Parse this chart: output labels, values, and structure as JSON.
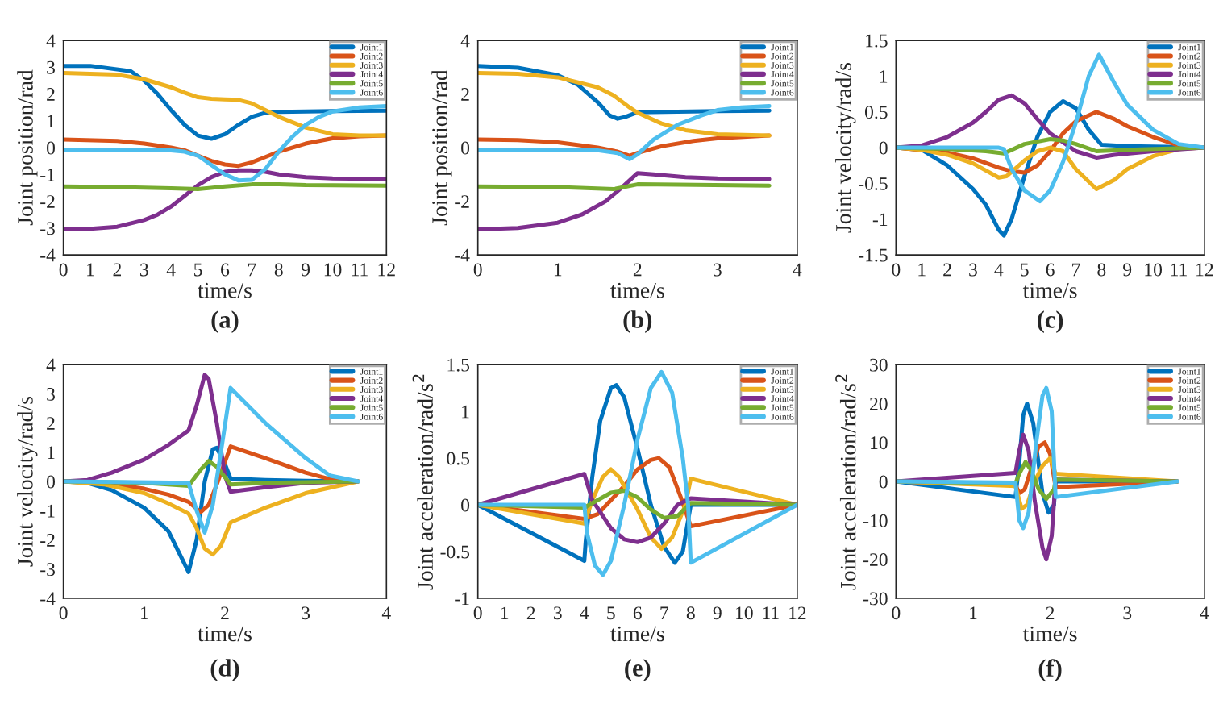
{
  "chart_data": [
    {
      "type": "line",
      "xlabel": "time/s",
      "ylabel": "Joint position/rad",
      "annotations": [
        "(a)"
      ],
      "legend": "top right",
      "xlim": [
        0,
        12
      ],
      "xticks": [
        0,
        1,
        2,
        3,
        4,
        5,
        6,
        7,
        8,
        9,
        10,
        11,
        12
      ],
      "ylim": [
        -4,
        4
      ],
      "yticks": [
        -4,
        -3,
        -2,
        -1,
        0,
        1,
        2,
        3,
        4
      ],
      "series": [
        {
          "name": "Joint1",
          "color": "#0072bd",
          "x": [
            0,
            1,
            2.5,
            3,
            3.5,
            4,
            4.5,
            5,
            5.5,
            6,
            6.5,
            7,
            7.5,
            8,
            10,
            12
          ],
          "values": [
            3.05,
            3.05,
            2.85,
            2.5,
            2.0,
            1.4,
            0.85,
            0.45,
            0.33,
            0.5,
            0.85,
            1.15,
            1.3,
            1.33,
            1.36,
            1.38
          ]
        },
        {
          "name": "Joint2",
          "color": "#d95319",
          "x": [
            0,
            2,
            3,
            4,
            4.5,
            5,
            5.5,
            6,
            6.5,
            7,
            7.5,
            8,
            9,
            10,
            11,
            12
          ],
          "values": [
            0.3,
            0.25,
            0.15,
            0.0,
            -0.1,
            -0.3,
            -0.5,
            -0.63,
            -0.68,
            -0.55,
            -0.35,
            -0.15,
            0.15,
            0.35,
            0.42,
            0.45
          ]
        },
        {
          "name": "Joint3",
          "color": "#edb120",
          "x": [
            0,
            2,
            3,
            4,
            4.5,
            5,
            5.5,
            6,
            6.5,
            7,
            7.5,
            8,
            9,
            10,
            11,
            12
          ],
          "values": [
            2.78,
            2.72,
            2.55,
            2.25,
            2.05,
            1.88,
            1.82,
            1.8,
            1.78,
            1.65,
            1.4,
            1.15,
            0.75,
            0.5,
            0.45,
            0.45
          ]
        },
        {
          "name": "Joint4",
          "color": "#7e2f8e",
          "x": [
            0,
            1,
            2,
            3,
            3.5,
            4,
            4.5,
            5,
            5.5,
            6,
            6.5,
            7,
            7.5,
            8,
            9,
            10,
            12
          ],
          "values": [
            -3.05,
            -3.03,
            -2.95,
            -2.7,
            -2.5,
            -2.2,
            -1.8,
            -1.4,
            -1.1,
            -0.9,
            -0.85,
            -0.85,
            -0.9,
            -1.0,
            -1.1,
            -1.15,
            -1.17
          ]
        },
        {
          "name": "Joint5",
          "color": "#77ac30",
          "x": [
            0,
            2,
            4,
            5,
            6,
            7,
            8,
            9,
            12
          ],
          "values": [
            -1.45,
            -1.47,
            -1.52,
            -1.55,
            -1.45,
            -1.37,
            -1.37,
            -1.4,
            -1.42
          ]
        },
        {
          "name": "Joint6",
          "color": "#4dbeee",
          "x": [
            0,
            4,
            4.5,
            5,
            5.5,
            6,
            6.5,
            7,
            7.5,
            8,
            8.5,
            9,
            9.5,
            10,
            11,
            12
          ],
          "values": [
            -0.1,
            -0.1,
            -0.15,
            -0.3,
            -0.65,
            -1.0,
            -1.22,
            -1.2,
            -0.8,
            -0.15,
            0.4,
            0.85,
            1.15,
            1.35,
            1.5,
            1.55
          ]
        }
      ]
    },
    {
      "type": "line",
      "xlabel": "time/s",
      "ylabel": "Joint position/rad",
      "annotations": [
        "(b)"
      ],
      "legend": "top right",
      "xlim": [
        0,
        4
      ],
      "xticks": [
        0,
        1,
        2,
        3,
        4
      ],
      "ylim": [
        -4,
        4
      ],
      "yticks": [
        -4,
        -2,
        0,
        2,
        4
      ],
      "series": [
        {
          "name": "Joint1",
          "color": "#0072bd",
          "x": [
            0,
            0.5,
            1,
            1.25,
            1.5,
            1.65,
            1.75,
            1.85,
            2.0,
            2.5,
            3,
            3.65
          ],
          "values": [
            3.05,
            2.98,
            2.7,
            2.35,
            1.7,
            1.2,
            1.08,
            1.15,
            1.32,
            1.34,
            1.36,
            1.38
          ]
        },
        {
          "name": "Joint2",
          "color": "#d95319",
          "x": [
            0,
            0.5,
            1,
            1.5,
            1.75,
            1.9,
            2.0,
            2.3,
            2.7,
            3.0,
            3.65
          ],
          "values": [
            0.3,
            0.28,
            0.2,
            0.0,
            -0.15,
            -0.3,
            -0.2,
            0.05,
            0.25,
            0.35,
            0.45
          ]
        },
        {
          "name": "Joint3",
          "color": "#edb120",
          "x": [
            0,
            0.5,
            1,
            1.5,
            1.7,
            1.9,
            2.0,
            2.3,
            2.6,
            3.0,
            3.65
          ],
          "values": [
            2.78,
            2.75,
            2.62,
            2.25,
            1.95,
            1.5,
            1.3,
            0.9,
            0.65,
            0.5,
            0.45
          ]
        },
        {
          "name": "Joint4",
          "color": "#7e2f8e",
          "x": [
            0,
            0.5,
            1,
            1.3,
            1.6,
            1.8,
            2.0,
            2.2,
            2.6,
            3.0,
            3.65
          ],
          "values": [
            -3.05,
            -3.0,
            -2.8,
            -2.5,
            -2.0,
            -1.5,
            -0.95,
            -1.0,
            -1.1,
            -1.15,
            -1.17
          ]
        },
        {
          "name": "Joint5",
          "color": "#77ac30",
          "x": [
            0,
            1,
            1.7,
            2.0,
            2.5,
            3.65
          ],
          "values": [
            -1.45,
            -1.47,
            -1.55,
            -1.37,
            -1.38,
            -1.42
          ]
        },
        {
          "name": "Joint6",
          "color": "#4dbeee",
          "x": [
            0,
            1.5,
            1.75,
            1.9,
            2.0,
            2.2,
            2.5,
            2.8,
            3.0,
            3.3,
            3.65
          ],
          "values": [
            -0.1,
            -0.1,
            -0.2,
            -0.43,
            -0.25,
            0.3,
            0.85,
            1.2,
            1.4,
            1.5,
            1.55
          ]
        }
      ]
    },
    {
      "type": "line",
      "xlabel": "time/s",
      "ylabel": "Joint velocity/rad/s",
      "annotations": [
        "(c)"
      ],
      "legend": "top right",
      "xlim": [
        0,
        12
      ],
      "xticks": [
        0,
        1,
        2,
        3,
        4,
        5,
        6,
        7,
        8,
        9,
        10,
        11,
        12
      ],
      "ylim": [
        -1.5,
        1.5
      ],
      "yticks": [
        -1.5,
        -1,
        -0.5,
        0,
        0.5,
        1,
        1.5
      ],
      "series": [
        {
          "name": "Joint1",
          "color": "#0072bd",
          "x": [
            0,
            1,
            2,
            3,
            3.5,
            4,
            4.2,
            4.5,
            5,
            5.5,
            6,
            6.5,
            7,
            7.5,
            8,
            9,
            11,
            12
          ],
          "values": [
            0,
            -0.03,
            -0.25,
            -0.58,
            -0.8,
            -1.15,
            -1.23,
            -1.0,
            -0.4,
            0.15,
            0.5,
            0.65,
            0.55,
            0.25,
            0.04,
            0.02,
            0.01,
            0
          ]
        },
        {
          "name": "Joint2",
          "color": "#d95319",
          "x": [
            0,
            2,
            3,
            4,
            4.5,
            5,
            5.5,
            6,
            6.5,
            7,
            7.8,
            8.5,
            9,
            10,
            11,
            12
          ],
          "values": [
            0,
            -0.07,
            -0.15,
            -0.28,
            -0.33,
            -0.35,
            -0.25,
            -0.05,
            0.2,
            0.37,
            0.5,
            0.4,
            0.3,
            0.15,
            0.03,
            0
          ]
        },
        {
          "name": "Joint3",
          "color": "#edb120",
          "x": [
            0,
            1,
            2,
            3,
            4,
            4.3,
            5,
            5.5,
            6,
            6.5,
            7,
            7.8,
            8.5,
            9,
            10,
            11,
            12
          ],
          "values": [
            0,
            -0.03,
            -0.1,
            -0.22,
            -0.42,
            -0.4,
            -0.18,
            -0.05,
            0,
            -0.05,
            -0.3,
            -0.58,
            -0.45,
            -0.3,
            -0.12,
            -0.02,
            0
          ]
        },
        {
          "name": "Joint4",
          "color": "#7e2f8e",
          "x": [
            0,
            1,
            2,
            3,
            3.5,
            4,
            4.5,
            5,
            5.5,
            6,
            7,
            7.8,
            8.5,
            10,
            12
          ],
          "values": [
            0,
            0.03,
            0.15,
            0.35,
            0.5,
            0.67,
            0.73,
            0.62,
            0.4,
            0.2,
            -0.05,
            -0.14,
            -0.1,
            -0.05,
            0
          ]
        },
        {
          "name": "Joint5",
          "color": "#77ac30",
          "x": [
            0,
            2,
            3.5,
            4.2,
            5,
            6,
            6.5,
            7,
            7.8,
            9,
            12
          ],
          "values": [
            0,
            -0.02,
            -0.05,
            -0.08,
            0.05,
            0.12,
            0.1,
            0.05,
            -0.05,
            -0.03,
            0
          ]
        },
        {
          "name": "Joint6",
          "color": "#4dbeee",
          "x": [
            0,
            4,
            4.2,
            4.5,
            5,
            5.6,
            6,
            6.5,
            7,
            7.5,
            7.9,
            8.5,
            9,
            10,
            11,
            12
          ],
          "values": [
            0,
            0,
            -0.02,
            -0.3,
            -0.6,
            -0.75,
            -0.6,
            -0.2,
            0.35,
            1.0,
            1.3,
            0.9,
            0.6,
            0.25,
            0.05,
            0
          ]
        }
      ]
    },
    {
      "type": "line",
      "xlabel": "time/s",
      "ylabel": "Joint velocity/rad/s",
      "annotations": [
        "(d)"
      ],
      "legend": "top right",
      "xlim": [
        0,
        4
      ],
      "xticks": [
        0,
        1,
        2,
        3,
        4
      ],
      "ylim": [
        -4,
        4
      ],
      "yticks": [
        -4,
        -3,
        -2,
        -1,
        0,
        1,
        2,
        3,
        4
      ],
      "series": [
        {
          "name": "Joint1",
          "color": "#0072bd",
          "x": [
            0,
            0.3,
            0.6,
            1,
            1.3,
            1.55,
            1.65,
            1.75,
            1.85,
            1.9,
            2.0,
            2.07,
            2.5,
            3,
            3.65
          ],
          "values": [
            0,
            -0.05,
            -0.3,
            -0.9,
            -1.7,
            -3.1,
            -2.0,
            0.0,
            1.1,
            1.15,
            0.6,
            0.1,
            0.05,
            0.02,
            0
          ]
        },
        {
          "name": "Joint2",
          "color": "#d95319",
          "x": [
            0,
            0.5,
            1,
            1.3,
            1.55,
            1.7,
            1.8,
            1.9,
            2.07,
            2.5,
            3.0,
            3.3,
            3.65
          ],
          "values": [
            0,
            -0.05,
            -0.25,
            -0.45,
            -0.7,
            -1.05,
            -0.8,
            -0.1,
            1.2,
            0.8,
            0.3,
            0.08,
            0
          ]
        },
        {
          "name": "Joint3",
          "color": "#edb120",
          "x": [
            0,
            0.5,
            1,
            1.3,
            1.55,
            1.65,
            1.75,
            1.85,
            1.95,
            2.07,
            2.5,
            3.0,
            3.65
          ],
          "values": [
            0,
            -0.1,
            -0.4,
            -0.75,
            -1.1,
            -1.6,
            -2.3,
            -2.5,
            -2.2,
            -1.4,
            -0.9,
            -0.4,
            0
          ]
        },
        {
          "name": "Joint4",
          "color": "#7e2f8e",
          "x": [
            0,
            0.3,
            0.6,
            1,
            1.3,
            1.55,
            1.65,
            1.75,
            1.8,
            1.9,
            2.0,
            2.07,
            2.5,
            3.0,
            3.65
          ],
          "values": [
            0,
            0.05,
            0.3,
            0.75,
            1.25,
            1.75,
            2.6,
            3.65,
            3.5,
            2.0,
            0.2,
            -0.35,
            -0.2,
            -0.05,
            0
          ]
        },
        {
          "name": "Joint5",
          "color": "#77ac30",
          "x": [
            0,
            1,
            1.55,
            1.7,
            1.8,
            1.9,
            2.07,
            2.5,
            3.65
          ],
          "values": [
            0,
            -0.05,
            -0.15,
            0.4,
            0.7,
            0.5,
            -0.1,
            -0.05,
            0
          ]
        },
        {
          "name": "Joint6",
          "color": "#4dbeee",
          "x": [
            0,
            1.55,
            1.65,
            1.75,
            1.85,
            1.95,
            2.07,
            2.5,
            3.0,
            3.3,
            3.65
          ],
          "values": [
            0,
            -0.05,
            -1.0,
            -1.75,
            -0.8,
            1.0,
            3.2,
            2.0,
            0.8,
            0.2,
            0
          ]
        }
      ]
    },
    {
      "type": "line",
      "xlabel": "time/s",
      "ylabel": "Joint acceleration/rad/s$^{2}$",
      "annotations": [
        "(e)"
      ],
      "legend": "top right",
      "xlim": [
        0,
        12
      ],
      "xticks": [
        0,
        1,
        2,
        3,
        4,
        5,
        6,
        7,
        8,
        9,
        10,
        11,
        12
      ],
      "ylim": [
        -1,
        1.5
      ],
      "yticks": [
        -1,
        -0.5,
        0,
        0.5,
        1,
        1.5
      ],
      "series": [
        {
          "name": "Joint1",
          "color": "#0072bd",
          "x": [
            0,
            4,
            4.05,
            4.3,
            4.6,
            5,
            5.2,
            5.5,
            6,
            6.5,
            7,
            7.4,
            7.7,
            8,
            12
          ],
          "values": [
            0,
            -0.6,
            -0.4,
            0.3,
            0.9,
            1.25,
            1.28,
            1.15,
            0.6,
            0.0,
            -0.45,
            -0.62,
            -0.5,
            0,
            0
          ]
        },
        {
          "name": "Joint2",
          "color": "#d95319",
          "x": [
            0,
            4,
            4.5,
            5,
            5.5,
            6,
            6.5,
            6.8,
            7.2,
            7.6,
            8,
            12
          ],
          "values": [
            0,
            -0.15,
            -0.1,
            0.05,
            0.2,
            0.38,
            0.48,
            0.5,
            0.4,
            0.1,
            -0.23,
            0
          ]
        },
        {
          "name": "Joint3",
          "color": "#edb120",
          "x": [
            0,
            4,
            4.3,
            4.7,
            5,
            5.3,
            6,
            6.5,
            6.9,
            7.3,
            7.8,
            8,
            12
          ],
          "values": [
            0,
            -0.2,
            0.05,
            0.3,
            0.38,
            0.3,
            -0.05,
            -0.35,
            -0.47,
            -0.35,
            0.0,
            0.28,
            0
          ]
        },
        {
          "name": "Joint4",
          "color": "#7e2f8e",
          "x": [
            0,
            4,
            4.3,
            5,
            5.5,
            6,
            6.5,
            7,
            7.5,
            8,
            12
          ],
          "values": [
            0,
            0.33,
            0.05,
            -0.25,
            -0.37,
            -0.4,
            -0.35,
            -0.2,
            0.0,
            0.07,
            0
          ]
        },
        {
          "name": "Joint5",
          "color": "#77ac30",
          "x": [
            0,
            4,
            4.5,
            5,
            5.5,
            6,
            6.5,
            7,
            7.5,
            8,
            12
          ],
          "values": [
            0,
            -0.03,
            0.05,
            0.13,
            0.15,
            0.08,
            -0.05,
            -0.14,
            -0.12,
            0.02,
            0
          ]
        },
        {
          "name": "Joint6",
          "color": "#4dbeee",
          "x": [
            0,
            4,
            4.1,
            4.4,
            4.7,
            5,
            5.5,
            6,
            6.5,
            6.9,
            7.3,
            7.7,
            7.9,
            8,
            12
          ],
          "values": [
            0,
            0,
            -0.3,
            -0.65,
            -0.75,
            -0.6,
            0.0,
            0.7,
            1.25,
            1.42,
            1.2,
            0.5,
            0.0,
            -0.62,
            0
          ]
        }
      ]
    },
    {
      "type": "line",
      "xlabel": "time/s",
      "ylabel": "Joint acceleration/rad/s$^{2}$",
      "annotations": [
        "(f)"
      ],
      "legend": "top right",
      "xlim": [
        0,
        4
      ],
      "xticks": [
        0,
        1,
        2,
        3,
        4
      ],
      "ylim": [
        -30,
        30
      ],
      "yticks": [
        -30,
        -20,
        -10,
        0,
        10,
        20,
        30
      ],
      "series": [
        {
          "name": "Joint1",
          "color": "#0072bd",
          "x": [
            0,
            1.55,
            1.6,
            1.65,
            1.7,
            1.78,
            1.9,
            1.98,
            2.05,
            2.07,
            3.65
          ],
          "values": [
            0,
            -4,
            5,
            17,
            20,
            15,
            -3,
            -8,
            -6,
            0,
            0
          ]
        },
        {
          "name": "Joint2",
          "color": "#d95319",
          "x": [
            0,
            1.55,
            1.6,
            1.67,
            1.75,
            1.85,
            1.93,
            2.0,
            2.07,
            3.65
          ],
          "values": [
            0,
            -1,
            -3,
            -2,
            3,
            9,
            10,
            7,
            -1.5,
            0
          ]
        },
        {
          "name": "Joint3",
          "color": "#edb120",
          "x": [
            0,
            1.55,
            1.63,
            1.7,
            1.8,
            1.9,
            2.0,
            2.07,
            3.65
          ],
          "values": [
            0,
            -1.2,
            -7,
            -6,
            0,
            4,
            6,
            2,
            0
          ]
        },
        {
          "name": "Joint4",
          "color": "#7e2f8e",
          "x": [
            0,
            1.55,
            1.6,
            1.65,
            1.72,
            1.8,
            1.9,
            1.95,
            2.02,
            2.07,
            3.65
          ],
          "values": [
            0,
            2.2,
            8,
            12,
            8,
            -5,
            -17,
            -20,
            -14,
            0.5,
            0
          ]
        },
        {
          "name": "Joint5",
          "color": "#77ac30",
          "x": [
            0,
            1.55,
            1.6,
            1.68,
            1.75,
            1.85,
            1.95,
            2.05,
            2.07,
            3.65
          ],
          "values": [
            0,
            -0.5,
            2,
            5,
            3,
            -2,
            -4.5,
            -2,
            0.5,
            0
          ]
        },
        {
          "name": "Joint6",
          "color": "#4dbeee",
          "x": [
            0,
            1.55,
            1.6,
            1.65,
            1.72,
            1.82,
            1.9,
            1.95,
            2.02,
            2.07,
            3.65
          ],
          "values": [
            0,
            -0.3,
            -10,
            -12,
            -8,
            10,
            22,
            24,
            18,
            -4,
            0
          ]
        }
      ]
    }
  ]
}
